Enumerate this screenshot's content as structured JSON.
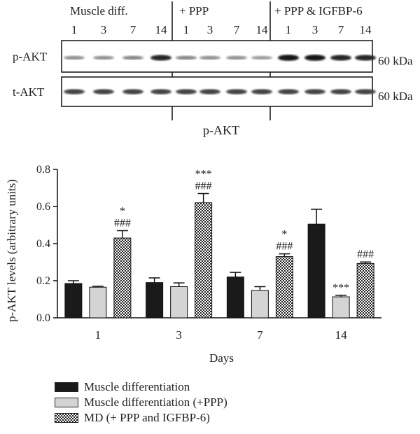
{
  "blot": {
    "groups": [
      {
        "label": "Muscle diff.",
        "days": [
          "1",
          "3",
          "7",
          "14"
        ]
      },
      {
        "label": "+ PPP",
        "days": [
          "1",
          "3",
          "7",
          "14"
        ]
      },
      {
        "label": "+ PPP & IGFBP-6",
        "days": [
          "1",
          "3",
          "7",
          "14"
        ]
      }
    ],
    "rows": [
      {
        "label": "p-AKT",
        "kda": "60 kDa",
        "intensity": [
          0.3,
          0.3,
          0.35,
          0.85,
          0.35,
          0.3,
          0.3,
          0.25,
          0.95,
          0.95,
          0.85,
          0.85
        ]
      },
      {
        "label": "t-AKT",
        "kda": "60 kDa",
        "intensity": [
          0.7,
          0.7,
          0.7,
          0.7,
          0.7,
          0.7,
          0.7,
          0.7,
          0.7,
          0.7,
          0.7,
          0.7
        ]
      }
    ]
  },
  "chart_data": {
    "type": "bar",
    "title": "p-AKT",
    "xlabel": "Days",
    "ylabel": "p-AKT levels (arbitrary units)",
    "categories": [
      "1",
      "3",
      "7",
      "14"
    ],
    "ylim": [
      0,
      0.8
    ],
    "yticks": [
      "0.0",
      "0.2",
      "0.4",
      "0.6",
      "0.8"
    ],
    "grid": false,
    "legend_position": "bottom-left",
    "series": [
      {
        "name": "Muscle differentiation",
        "fill": "#1a1a1a",
        "values": [
          0.185,
          0.19,
          0.22,
          0.505
        ],
        "errors": [
          0.015,
          0.025,
          0.025,
          0.08
        ],
        "annotations": [
          "",
          "",
          "",
          ""
        ]
      },
      {
        "name": "Muscle differentiation (+PPP)",
        "fill": "#d4d4d4",
        "values": [
          0.165,
          0.168,
          0.148,
          0.113
        ],
        "errors": [
          0.005,
          0.02,
          0.02,
          0.008
        ],
        "annotations": [
          "",
          "",
          "",
          "***"
        ]
      },
      {
        "name": "MD (+ PPP and IGFBP-6)",
        "fill": "pattern",
        "values": [
          0.43,
          0.62,
          0.33,
          0.293
        ],
        "errors": [
          0.04,
          0.05,
          0.015,
          0.008
        ],
        "annotations": [
          "*\n###",
          "***\n###",
          "*\n###",
          "###"
        ]
      }
    ]
  }
}
